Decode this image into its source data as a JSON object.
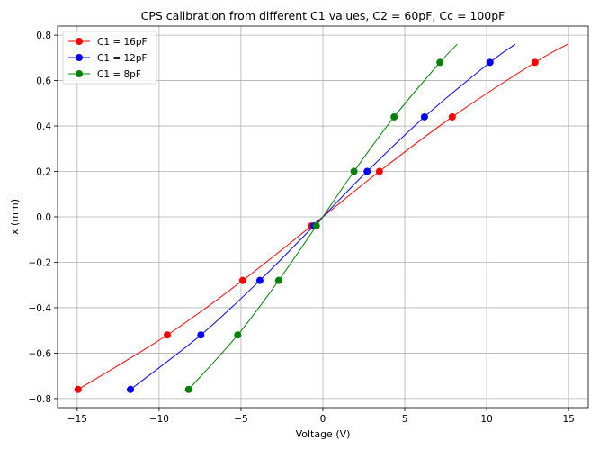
{
  "chart_data": {
    "type": "line",
    "title": "CPS calibration from different C1 values, C2 = 60pF, Cc = 100pF",
    "xlabel": "Voltage (V)",
    "ylabel": "x (mm)",
    "xlim": [
      -16.2,
      16.2
    ],
    "ylim": [
      -0.84,
      0.84
    ],
    "xticks": [
      -15,
      -10,
      -5,
      0,
      5,
      10,
      15
    ],
    "xtick_labels": [
      "−15",
      "−10",
      "−5",
      "0",
      "5",
      "10",
      "15"
    ],
    "yticks": [
      -0.8,
      -0.6,
      -0.4,
      -0.2,
      0.0,
      0.2,
      0.4,
      0.6,
      0.8
    ],
    "ytick_labels": [
      "−0.8",
      "−0.6",
      "−0.4",
      "−0.2",
      "0.0",
      "0.2",
      "0.4",
      "0.6",
      "0.8"
    ],
    "grid": true,
    "legend_position": "top-left",
    "series": [
      {
        "name": "C1 = 16pF",
        "color": "#ff0000",
        "markers": {
          "x": [
            -14.95,
            -9.5,
            -4.9,
            -0.7,
            3.45,
            7.9,
            12.95
          ],
          "y": [
            -0.76,
            -0.52,
            -0.28,
            -0.04,
            0.2,
            0.44,
            0.68
          ]
        },
        "curve": {
          "x": [
            -14.95,
            -9.5,
            -4.9,
            -0.7,
            0.0,
            3.45,
            7.9,
            12.95,
            14.95
          ],
          "y": [
            -0.76,
            -0.52,
            -0.28,
            -0.04,
            0.0,
            0.2,
            0.44,
            0.68,
            0.76
          ]
        }
      },
      {
        "name": "C1 = 12pF",
        "color": "#0000ff",
        "markers": {
          "x": [
            -11.75,
            -7.45,
            -3.85,
            -0.55,
            2.7,
            6.2,
            10.2
          ],
          "y": [
            -0.76,
            -0.52,
            -0.28,
            -0.04,
            0.2,
            0.44,
            0.68
          ]
        },
        "curve": {
          "x": [
            -11.75,
            -7.45,
            -3.85,
            -0.55,
            0.0,
            2.7,
            6.2,
            10.2,
            11.75
          ],
          "y": [
            -0.76,
            -0.52,
            -0.28,
            -0.04,
            0.0,
            0.2,
            0.44,
            0.68,
            0.76
          ]
        }
      },
      {
        "name": "C1 = 8pF",
        "color": "#008000",
        "markers": {
          "x": [
            -8.2,
            -5.2,
            -2.7,
            -0.4,
            1.9,
            4.35,
            7.15
          ],
          "y": [
            -0.76,
            -0.52,
            -0.28,
            -0.04,
            0.2,
            0.44,
            0.68
          ]
        },
        "curve": {
          "x": [
            -8.2,
            -5.2,
            -2.7,
            -0.4,
            0.0,
            1.9,
            4.35,
            7.15,
            8.2
          ],
          "y": [
            -0.76,
            -0.52,
            -0.28,
            -0.04,
            0.0,
            0.2,
            0.44,
            0.68,
            0.76
          ]
        }
      }
    ]
  }
}
